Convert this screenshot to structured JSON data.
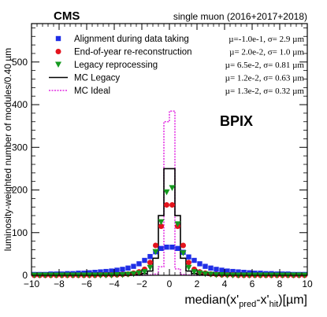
{
  "header": {
    "experiment": "CMS",
    "dataset": "single muon (2016+2017+2018)"
  },
  "region_label": "BPIX",
  "colors": {
    "alignment": "#1f2ee6",
    "eoy": "#e4141d",
    "legacy_reproc": "#159a1f",
    "mc_legacy": "#000000",
    "mc_ideal": "#e22be2"
  },
  "chart_data": {
    "type": "histogram",
    "xlabel": "median(x'pred-x'hit)[µm]",
    "xlabel_parts": {
      "pre": "median(x'",
      "sub1": "pred",
      "mid": "-x'",
      "sub2": "hit",
      "post": ")[µm]"
    },
    "ylabel": "luminosity-weighted number of modules/0.40 µm",
    "xlim": [
      -10,
      10
    ],
    "ylim": [
      0,
      590
    ],
    "x_ticks": [
      -10,
      -8,
      -6,
      -4,
      -2,
      0,
      2,
      4,
      6,
      8,
      10
    ],
    "x_tick_labels": [
      "−10",
      "−8",
      "−6",
      "−4",
      "−2",
      "0",
      "2",
      "4",
      "6",
      "8",
      "10"
    ],
    "y_ticks": [
      0,
      100,
      200,
      300,
      400,
      500
    ],
    "y_tick_labels": [
      "0",
      "100",
      "200",
      "300",
      "400",
      "500"
    ],
    "bin_width": 0.4,
    "bin_centers": [
      -9.8,
      -9.4,
      -9.0,
      -8.6,
      -8.2,
      -7.8,
      -7.4,
      -7.0,
      -6.6,
      -6.2,
      -5.8,
      -5.4,
      -5.0,
      -4.6,
      -4.2,
      -3.8,
      -3.4,
      -3.0,
      -2.6,
      -2.2,
      -1.8,
      -1.4,
      -1.0,
      -0.6,
      -0.2,
      0.2,
      0.6,
      1.0,
      1.4,
      1.8,
      2.2,
      2.6,
      3.0,
      3.4,
      3.8,
      4.2,
      4.6,
      5.0,
      5.4,
      5.8,
      6.2,
      6.6,
      7.0,
      7.4,
      7.8,
      8.2,
      8.6,
      9.0,
      9.4,
      9.8
    ],
    "series": [
      {
        "key": "alignment",
        "name": "Alignment during data taking",
        "stat": "µ=-1.0e-1, σ= 2.9 µm",
        "style": "square",
        "values": [
          2,
          2,
          2,
          3,
          3,
          3,
          4,
          4,
          5,
          5,
          6,
          7,
          8,
          9,
          10,
          12,
          14,
          17,
          21,
          27,
          35,
          44,
          55,
          63,
          66,
          66,
          63,
          54,
          43,
          35,
          27,
          21,
          17,
          14,
          12,
          10,
          9,
          8,
          7,
          6,
          5,
          5,
          4,
          4,
          3,
          3,
          3,
          2,
          2,
          2
        ]
      },
      {
        "key": "eoy",
        "name": "End-of-year re-reconstruction",
        "stat": "µ= 2.0e-2, σ= 1.0 µm",
        "style": "circle",
        "values": [
          0,
          0,
          0,
          0,
          0,
          0,
          0,
          0,
          0,
          0,
          0,
          0,
          1,
          1,
          1,
          1,
          2,
          3,
          5,
          8,
          14,
          30,
          70,
          115,
          165,
          165,
          115,
          70,
          30,
          14,
          8,
          5,
          3,
          2,
          1,
          1,
          1,
          0,
          0,
          0,
          0,
          0,
          0,
          0,
          0,
          0,
          0,
          0,
          0,
          0
        ]
      },
      {
        "key": "legacy_reproc",
        "name": "Legacy reprocessing",
        "stat": "µ= 6.5e-2, σ= 0.81 µm",
        "style": "triangle",
        "values": [
          0,
          0,
          0,
          0,
          0,
          0,
          0,
          0,
          0,
          0,
          0,
          0,
          0,
          0,
          0,
          1,
          1,
          2,
          3,
          5,
          8,
          18,
          55,
          125,
          195,
          205,
          120,
          52,
          18,
          8,
          5,
          3,
          2,
          1,
          1,
          0,
          0,
          0,
          0,
          0,
          0,
          0,
          0,
          0,
          0,
          0,
          0,
          0,
          0,
          0
        ]
      },
      {
        "key": "mc_legacy",
        "name": "MC Legacy",
        "stat": "µ= 1.2e-2, σ= 0.63 µm",
        "style": "solid-step",
        "values": [
          0,
          0,
          0,
          0,
          0,
          0,
          0,
          0,
          0,
          0,
          0,
          0,
          0,
          0,
          0,
          0,
          0,
          0,
          1,
          2,
          4,
          10,
          40,
          140,
          250,
          250,
          140,
          40,
          10,
          4,
          2,
          1,
          0,
          0,
          0,
          0,
          0,
          0,
          0,
          0,
          0,
          0,
          0,
          0,
          0,
          0,
          0,
          0,
          0,
          0
        ]
      },
      {
        "key": "mc_ideal",
        "name": "MC Ideal",
        "stat": "µ= 1.3e-2, σ= 0.32 µm",
        "style": "dotted-step",
        "values": [
          0,
          0,
          0,
          0,
          0,
          0,
          0,
          0,
          0,
          0,
          0,
          0,
          0,
          0,
          0,
          0,
          0,
          0,
          0,
          0,
          0,
          1,
          3,
          20,
          360,
          385,
          15,
          2,
          1,
          0,
          0,
          0,
          0,
          0,
          0,
          0,
          0,
          0,
          0,
          0,
          0,
          0,
          0,
          0,
          0,
          0,
          0,
          0,
          0,
          0
        ]
      }
    ],
    "legend": "top-left"
  }
}
